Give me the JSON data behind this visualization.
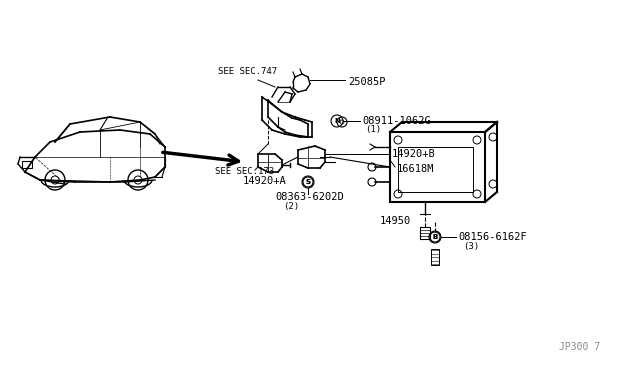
{
  "bg_color": "#ffffff",
  "line_color": "#000000",
  "fig_width": 6.4,
  "fig_height": 3.72,
  "dpi": 100,
  "diagram_number": "JP300 7",
  "labels": {
    "see_sec_747": "SEE SEC.747",
    "see_sec_173": "SEE SEC.173",
    "part_25085P": "25085P",
    "part_08911": "08911-1062G",
    "part_N1": "(1)",
    "part_N_circle": "N",
    "part_14920B": "14920+B",
    "part_16618M": "16618M",
    "part_14920A": "14920+A",
    "part_08363": "08363-6202D",
    "part_S2": "(2)",
    "part_S_circle": "S",
    "part_14950": "14950",
    "part_08156": "08156-6162F",
    "part_B3": "(3)",
    "part_B_circle": "B"
  }
}
